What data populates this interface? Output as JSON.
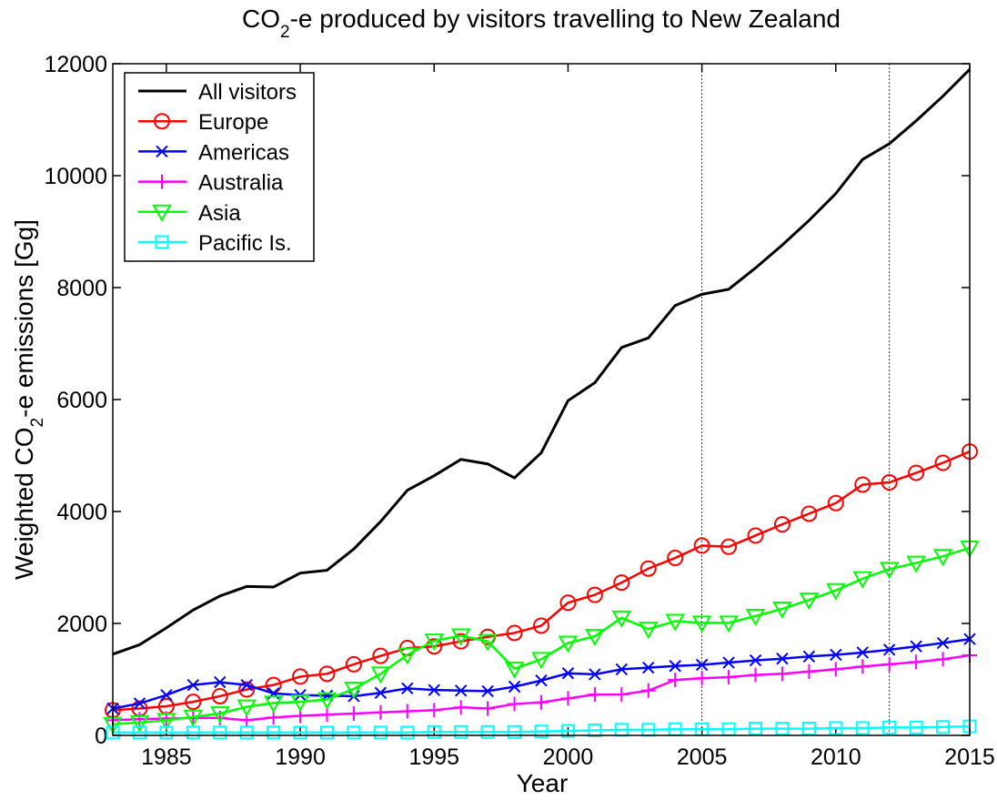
{
  "chart_data": {
    "type": "line",
    "title_parts": [
      "CO",
      "2",
      "-e produced by visitors travelling to New Zealand"
    ],
    "xlabel": "Year",
    "ylabel_parts": [
      "Weighted CO",
      "2",
      "-e emissions [Gg]"
    ],
    "x": [
      1983,
      1984,
      1985,
      1986,
      1987,
      1988,
      1989,
      1990,
      1991,
      1992,
      1993,
      1994,
      1995,
      1996,
      1997,
      1998,
      1999,
      2000,
      2001,
      2002,
      2003,
      2004,
      2005,
      2006,
      2007,
      2008,
      2009,
      2010,
      2011,
      2012,
      2013,
      2014,
      2015
    ],
    "xlim": [
      1983,
      2015
    ],
    "xticks": [
      1985,
      1990,
      1995,
      2000,
      2005,
      2010,
      2015
    ],
    "ylim": [
      0,
      12000
    ],
    "yticks": [
      0,
      2000,
      4000,
      6000,
      8000,
      10000,
      12000
    ],
    "vlines": [
      2005,
      2012
    ],
    "grid": false,
    "legend": "top-left",
    "series": [
      {
        "name": "All visitors",
        "color": "#000000",
        "marker": "none",
        "values": [
          1450,
          1620,
          1920,
          2240,
          2490,
          2660,
          2650,
          2900,
          2950,
          3330,
          3820,
          4380,
          4640,
          4930,
          4850,
          4600,
          5050,
          5980,
          6300,
          6930,
          7100,
          7680,
          7880,
          7970,
          8350,
          8760,
          9200,
          9680,
          10290,
          10570,
          10980,
          11420,
          11900
        ]
      },
      {
        "name": "Europe",
        "color": "#ff0000",
        "marker": "circle",
        "values": [
          450,
          480,
          520,
          600,
          700,
          820,
          900,
          1050,
          1100,
          1270,
          1420,
          1560,
          1590,
          1680,
          1760,
          1830,
          1960,
          2370,
          2510,
          2730,
          2980,
          3170,
          3390,
          3370,
          3570,
          3770,
          3960,
          4150,
          4480,
          4520,
          4690,
          4870,
          5070
        ]
      },
      {
        "name": "Americas",
        "color": "#0000ff",
        "marker": "x",
        "values": [
          480,
          570,
          720,
          900,
          950,
          900,
          750,
          720,
          710,
          700,
          760,
          840,
          810,
          800,
          790,
          870,
          980,
          1110,
          1090,
          1180,
          1210,
          1240,
          1260,
          1300,
          1340,
          1370,
          1410,
          1440,
          1480,
          1530,
          1590,
          1650,
          1720
        ]
      },
      {
        "name": "Australia",
        "color": "#ff00ff",
        "marker": "plus",
        "values": [
          270,
          290,
          300,
          310,
          310,
          270,
          320,
          350,
          370,
          390,
          410,
          430,
          450,
          500,
          480,
          560,
          590,
          660,
          730,
          730,
          800,
          990,
          1020,
          1040,
          1080,
          1100,
          1140,
          1180,
          1230,
          1270,
          1310,
          1360,
          1430
        ]
      },
      {
        "name": "Asia",
        "color": "#00ff00",
        "marker": "triangle-down",
        "values": [
          200,
          230,
          270,
          330,
          390,
          510,
          580,
          600,
          640,
          830,
          1100,
          1440,
          1690,
          1780,
          1680,
          1190,
          1360,
          1650,
          1770,
          2100,
          1900,
          2040,
          2010,
          2010,
          2130,
          2260,
          2420,
          2590,
          2800,
          2970,
          3080,
          3200,
          3350
        ]
      },
      {
        "name": "Pacific Is.",
        "color": "#00ffff",
        "marker": "square",
        "values": [
          50,
          50,
          50,
          50,
          50,
          50,
          50,
          50,
          50,
          50,
          50,
          50,
          60,
          60,
          60,
          60,
          70,
          80,
          90,
          100,
          100,
          110,
          110,
          110,
          120,
          120,
          120,
          130,
          130,
          140,
          140,
          150,
          160
        ]
      }
    ]
  }
}
